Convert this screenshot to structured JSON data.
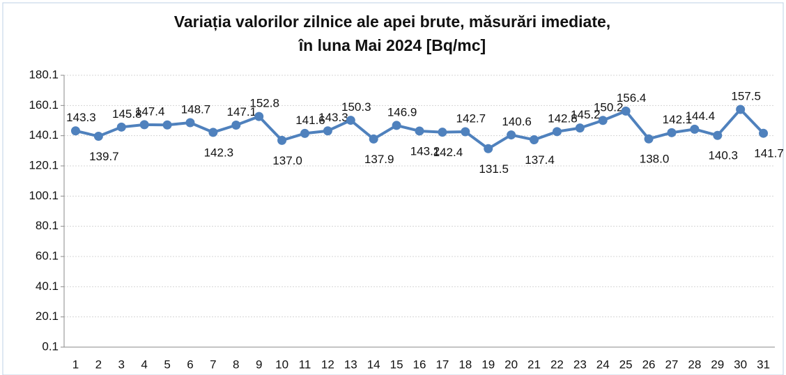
{
  "chart_data": {
    "type": "line",
    "title": [
      "Variația valorilor zilnice ale apei brute, măsurări imediate,",
      "în luna Mai 2024 [Bq/mc]"
    ],
    "categories": [
      "1",
      "2",
      "3",
      "4",
      "5",
      "6",
      "7",
      "8",
      "9",
      "10",
      "11",
      "12",
      "13",
      "14",
      "15",
      "16",
      "17",
      "18",
      "19",
      "20",
      "21",
      "22",
      "23",
      "24",
      "25",
      "26",
      "27",
      "28",
      "29",
      "30",
      "31"
    ],
    "series": [
      {
        "color": "#4f81bd",
        "values": [
          143.3,
          139.7,
          145.8,
          147.4,
          147.2,
          148.7,
          142.3,
          147.1,
          152.8,
          137.0,
          141.6,
          143.3,
          150.3,
          137.9,
          146.9,
          143.2,
          142.4,
          142.7,
          131.5,
          140.6,
          137.4,
          142.8,
          145.2,
          150.2,
          156.4,
          138.0,
          142.1,
          144.4,
          140.3,
          157.5,
          141.7
        ],
        "value_labels": [
          "143.3",
          "139.7",
          "145.8",
          "147.4",
          null,
          "148.7",
          "142.3",
          "147.1",
          "152.8",
          "137.0",
          "141.6",
          "143.3",
          "150.3",
          "137.9",
          "146.9",
          "143.2",
          "142.4",
          "142.7",
          "131.5",
          "140.6",
          "137.4",
          "142.8",
          "145.2",
          "150.2",
          "156.4",
          "138.0",
          "142.1",
          "144.4",
          "140.3",
          "157.5",
          "141.7"
        ]
      }
    ],
    "ylim": [
      0.1,
      180.1
    ],
    "yticks": [
      0.1,
      20.1,
      40.1,
      60.1,
      80.1,
      100.1,
      120.1,
      140.1,
      160.1,
      180.1
    ],
    "grid": true
  }
}
